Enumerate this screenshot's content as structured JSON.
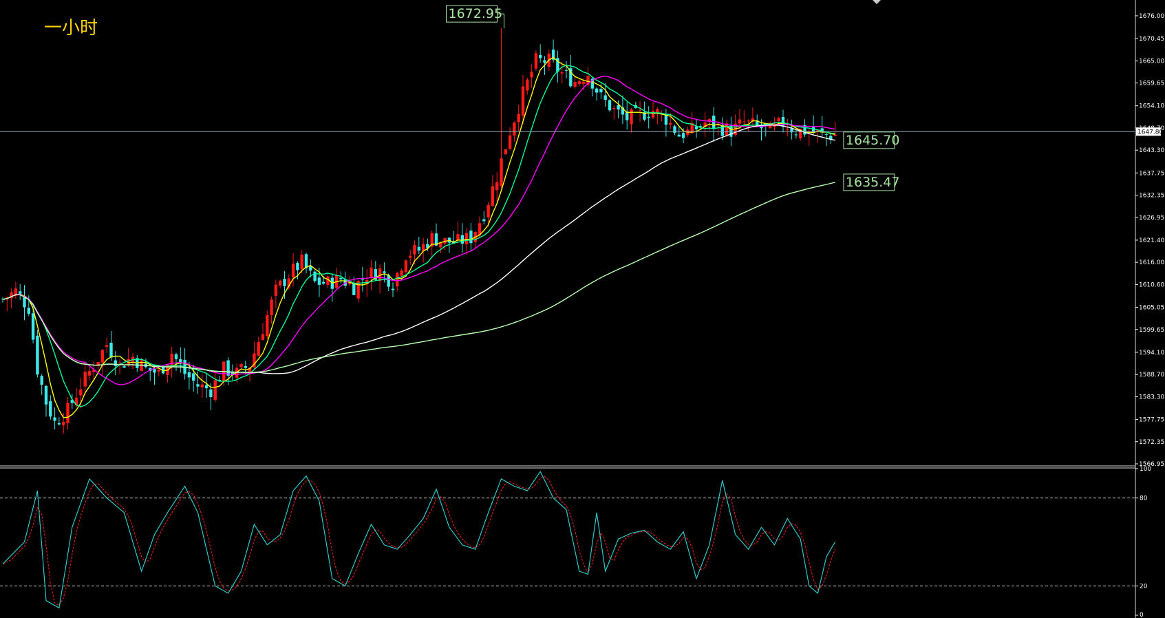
{
  "timeframe_label": "一小时",
  "colors": {
    "background": "#000000",
    "bull_candle": "#ff1a1a",
    "bear_candle": "#3ee8e8",
    "ma_fast": "#ffff00",
    "ma_2": "#00ff99",
    "ma_3": "#ff00ff",
    "ma_4": "#ffffff",
    "ma_5": "#b8ffb0",
    "stoch_k": "#2ec9c9",
    "stoch_d": "#ff2020",
    "current_price_line": "#8fa6b8",
    "label_box": "#a8e6a0",
    "axis": "#ffffff"
  },
  "chart_data": [
    {
      "type": "candlestick",
      "timeframe": "一小时",
      "ylim": [
        1566.95,
        1678.5
      ],
      "y_ticks": [
        "1676.00",
        "1670.45",
        "1665.00",
        "1659.65",
        "1654.10",
        "1648.70",
        "1643.30",
        "1637.75",
        "1632.35",
        "1626.95",
        "1621.40",
        "1616.00",
        "1610.60",
        "1605.05",
        "1599.65",
        "1594.10",
        "1588.70",
        "1583.30",
        "1577.75",
        "1572.35",
        "1566.95"
      ],
      "current_price": "1647.80",
      "annotations": [
        {
          "text": "1672.95",
          "x": 115,
          "y": 1672.95
        },
        {
          "text": "1645.70",
          "x": 193,
          "y": 1645.7
        },
        {
          "text": "1635.47",
          "x": 193,
          "y": 1635.47
        }
      ],
      "series_close_anchors": [
        [
          0,
          1607
        ],
        [
          3,
          1609
        ],
        [
          6,
          1605
        ],
        [
          8,
          1590
        ],
        [
          10,
          1582
        ],
        [
          12,
          1577
        ],
        [
          15,
          1580
        ],
        [
          18,
          1586
        ],
        [
          21,
          1591
        ],
        [
          24,
          1596
        ],
        [
          27,
          1591
        ],
        [
          30,
          1593
        ],
        [
          33,
          1590
        ],
        [
          36,
          1589
        ],
        [
          39,
          1594
        ],
        [
          42,
          1589
        ],
        [
          45,
          1586
        ],
        [
          48,
          1585
        ],
        [
          51,
          1590
        ],
        [
          54,
          1589
        ],
        [
          57,
          1591
        ],
        [
          60,
          1600
        ],
        [
          63,
          1609
        ],
        [
          66,
          1613
        ],
        [
          69,
          1616
        ],
        [
          72,
          1611
        ],
        [
          75,
          1611
        ],
        [
          78,
          1612
        ],
        [
          81,
          1610
        ],
        [
          84,
          1613
        ],
        [
          87,
          1614
        ],
        [
          90,
          1611
        ],
        [
          93,
          1618
        ],
        [
          96,
          1619
        ],
        [
          99,
          1622
        ],
        [
          102,
          1621
        ],
        [
          105,
          1621
        ],
        [
          108,
          1622
        ],
        [
          111,
          1628
        ],
        [
          114,
          1637
        ],
        [
          117,
          1648
        ],
        [
          120,
          1657
        ],
        [
          123,
          1665
        ],
        [
          126,
          1665
        ],
        [
          129,
          1662
        ],
        [
          132,
          1660
        ],
        [
          135,
          1662
        ],
        [
          138,
          1656
        ],
        [
          141,
          1653
        ],
        [
          144,
          1651
        ],
        [
          147,
          1652
        ],
        [
          150,
          1653
        ],
        [
          153,
          1651
        ],
        [
          156,
          1647
        ],
        [
          159,
          1648
        ],
        [
          162,
          1650
        ],
        [
          165,
          1649
        ],
        [
          168,
          1648
        ],
        [
          171,
          1650
        ],
        [
          174,
          1649
        ],
        [
          177,
          1648
        ],
        [
          180,
          1650
        ],
        [
          183,
          1648
        ],
        [
          186,
          1648
        ],
        [
          189,
          1647
        ],
        [
          192,
          1647
        ]
      ],
      "moving_averages": [
        {
          "period": 5,
          "color": "ma_fast"
        },
        {
          "period": 10,
          "color": "ma_2"
        },
        {
          "period": 20,
          "color": "ma_3"
        },
        {
          "period": 60,
          "color": "ma_4"
        },
        {
          "period": 120,
          "color": "ma_5"
        }
      ],
      "grid": false
    },
    {
      "type": "line",
      "indicator": "stochastic",
      "ylim": [
        0,
        100
      ],
      "y_ticks": [
        "100",
        "80",
        "20",
        "0"
      ],
      "levels": [
        80,
        20
      ],
      "k_anchors": [
        [
          0,
          35
        ],
        [
          5,
          50
        ],
        [
          8,
          85
        ],
        [
          10,
          10
        ],
        [
          13,
          5
        ],
        [
          16,
          60
        ],
        [
          20,
          93
        ],
        [
          24,
          80
        ],
        [
          28,
          70
        ],
        [
          32,
          30
        ],
        [
          35,
          55
        ],
        [
          38,
          70
        ],
        [
          42,
          88
        ],
        [
          45,
          70
        ],
        [
          49,
          20
        ],
        [
          52,
          15
        ],
        [
          55,
          30
        ],
        [
          58,
          62
        ],
        [
          61,
          48
        ],
        [
          64,
          55
        ],
        [
          67,
          85
        ],
        [
          70,
          95
        ],
        [
          73,
          78
        ],
        [
          76,
          25
        ],
        [
          79,
          20
        ],
        [
          82,
          42
        ],
        [
          85,
          62
        ],
        [
          88,
          48
        ],
        [
          91,
          45
        ],
        [
          94,
          55
        ],
        [
          97,
          66
        ],
        [
          100,
          86
        ],
        [
          103,
          60
        ],
        [
          106,
          48
        ],
        [
          109,
          45
        ],
        [
          112,
          70
        ],
        [
          115,
          93
        ],
        [
          118,
          88
        ],
        [
          121,
          85
        ],
        [
          124,
          98
        ],
        [
          127,
          80
        ],
        [
          130,
          72
        ],
        [
          133,
          30
        ],
        [
          135,
          28
        ],
        [
          137,
          70
        ],
        [
          139,
          30
        ],
        [
          142,
          52
        ],
        [
          145,
          56
        ],
        [
          148,
          58
        ],
        [
          151,
          50
        ],
        [
          154,
          45
        ],
        [
          157,
          57
        ],
        [
          160,
          25
        ],
        [
          163,
          48
        ],
        [
          166,
          92
        ],
        [
          169,
          55
        ],
        [
          172,
          45
        ],
        [
          175,
          60
        ],
        [
          178,
          48
        ],
        [
          181,
          66
        ],
        [
          184,
          52
        ],
        [
          186,
          20
        ],
        [
          188,
          15
        ],
        [
          190,
          40
        ],
        [
          192,
          50
        ]
      ]
    }
  ]
}
